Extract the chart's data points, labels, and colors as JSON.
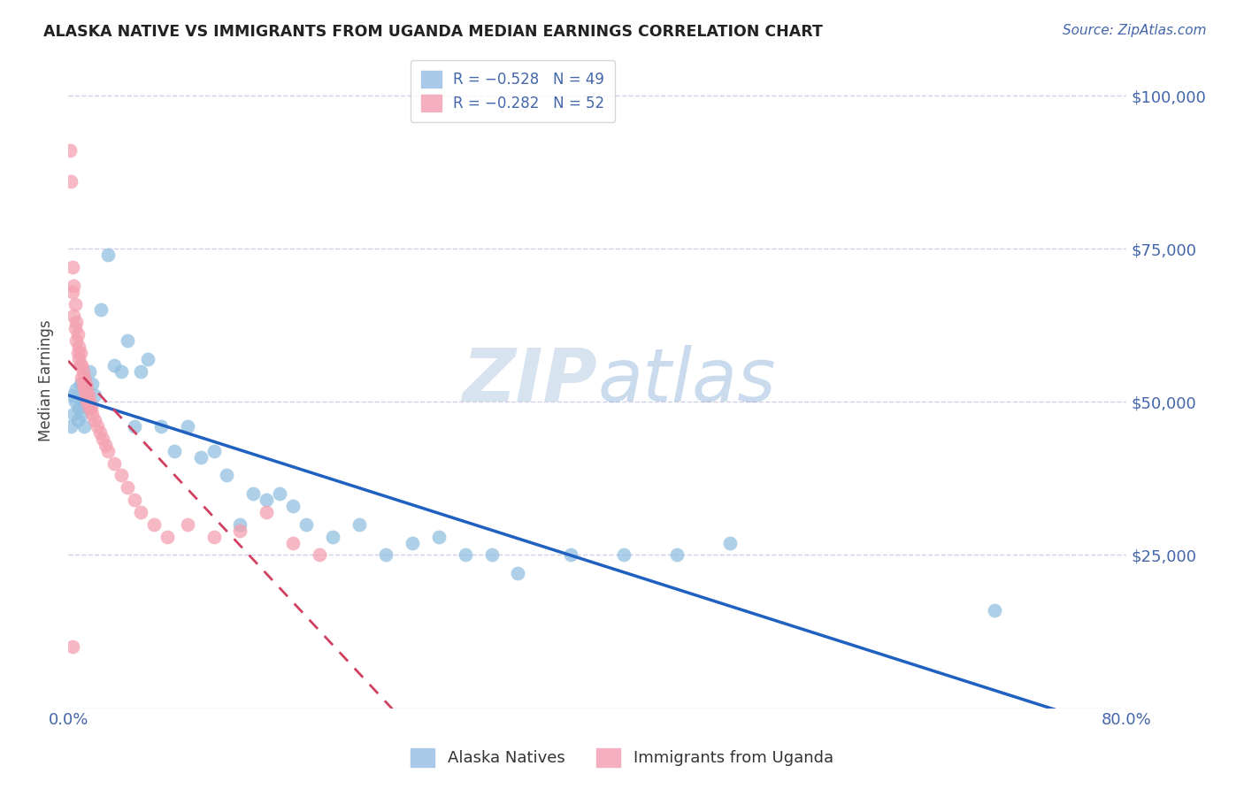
{
  "title": "ALASKA NATIVE VS IMMIGRANTS FROM UGANDA MEDIAN EARNINGS CORRELATION CHART",
  "source": "Source: ZipAtlas.com",
  "ylabel": "Median Earnings",
  "yticks": [
    0,
    25000,
    50000,
    75000,
    100000
  ],
  "ytick_labels": [
    "",
    "$25,000",
    "$50,000",
    "$75,000",
    "$100,000"
  ],
  "xlim": [
    0.0,
    0.8
  ],
  "ylim": [
    0,
    107000
  ],
  "watermark_zip": "ZIP",
  "watermark_atlas": "atlas",
  "blue_color": "#92c0e0",
  "pink_color": "#f4a0b0",
  "blue_line_color": "#2060c0",
  "pink_line_color": "#d04060",
  "title_color": "#222222",
  "axis_label_color": "#4466aa",
  "grid_color": "#d0d0e8",
  "background_color": "#ffffff",
  "alaska_x": [
    0.002,
    0.003,
    0.004,
    0.005,
    0.006,
    0.007,
    0.008,
    0.009,
    0.01,
    0.011,
    0.012,
    0.013,
    0.015,
    0.016,
    0.018,
    0.02,
    0.025,
    0.03,
    0.035,
    0.04,
    0.045,
    0.05,
    0.055,
    0.06,
    0.07,
    0.08,
    0.09,
    0.1,
    0.11,
    0.12,
    0.13,
    0.14,
    0.15,
    0.16,
    0.17,
    0.18,
    0.2,
    0.22,
    0.24,
    0.26,
    0.28,
    0.3,
    0.32,
    0.34,
    0.38,
    0.42,
    0.46,
    0.5,
    0.7
  ],
  "alaska_y": [
    46000,
    51000,
    48000,
    50000,
    52000,
    47000,
    49000,
    53000,
    48000,
    50000,
    46000,
    52000,
    49000,
    55000,
    53000,
    51000,
    65000,
    74000,
    56000,
    55000,
    60000,
    46000,
    55000,
    57000,
    46000,
    42000,
    46000,
    41000,
    42000,
    38000,
    30000,
    35000,
    34000,
    35000,
    33000,
    30000,
    28000,
    30000,
    25000,
    27000,
    28000,
    25000,
    25000,
    22000,
    25000,
    25000,
    25000,
    27000,
    16000
  ],
  "uganda_x": [
    0.001,
    0.002,
    0.003,
    0.003,
    0.004,
    0.004,
    0.005,
    0.005,
    0.006,
    0.006,
    0.007,
    0.007,
    0.008,
    0.008,
    0.009,
    0.009,
    0.01,
    0.01,
    0.011,
    0.011,
    0.012,
    0.012,
    0.013,
    0.013,
    0.014,
    0.014,
    0.015,
    0.015,
    0.016,
    0.016,
    0.017,
    0.018,
    0.02,
    0.022,
    0.024,
    0.026,
    0.028,
    0.03,
    0.035,
    0.04,
    0.045,
    0.05,
    0.055,
    0.065,
    0.075,
    0.09,
    0.11,
    0.13,
    0.15,
    0.17,
    0.19,
    0.003
  ],
  "uganda_y": [
    91000,
    86000,
    68000,
    72000,
    64000,
    69000,
    62000,
    66000,
    60000,
    63000,
    58000,
    61000,
    57000,
    59000,
    56000,
    58000,
    54000,
    56000,
    53000,
    55000,
    52000,
    54000,
    51000,
    53000,
    50000,
    52000,
    50000,
    51000,
    49000,
    50000,
    49000,
    48000,
    47000,
    46000,
    45000,
    44000,
    43000,
    42000,
    40000,
    38000,
    36000,
    34000,
    32000,
    30000,
    28000,
    30000,
    28000,
    29000,
    32000,
    27000,
    25000,
    10000
  ]
}
